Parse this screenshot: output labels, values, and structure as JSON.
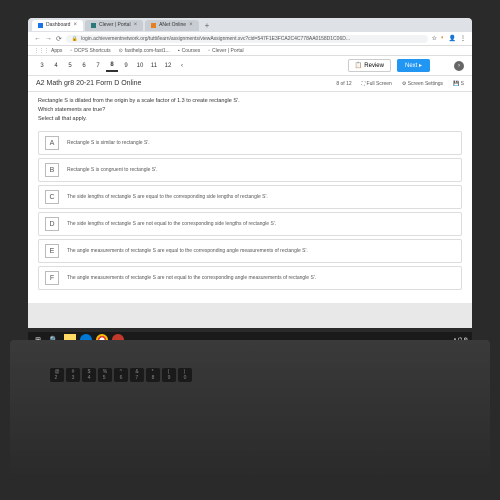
{
  "browser": {
    "tabs": [
      {
        "icon": "blue",
        "label": "Dashboard"
      },
      {
        "icon": "teal",
        "label": "Clever | Portal"
      },
      {
        "icon": "orange",
        "label": "ANet Online"
      }
    ],
    "url": "login.achievementnetwork.org/tutti/learn/assignments/viewAssignment.svc?cid=547F1E3FCA2C4C778AA0158D1C06D...",
    "bookmarks": [
      "Apps",
      "DCPS Shortcuts",
      "fasthelp.com-fast1...",
      "Courses",
      "Clever | Portal"
    ]
  },
  "quiz": {
    "numbers": [
      "3",
      "4",
      "5",
      "6",
      "7",
      "8",
      "9",
      "10",
      "11",
      "12"
    ],
    "current": "8",
    "review": "Review",
    "next": "Next ▸",
    "title": "A2 Math gr8 20-21 Form D Online",
    "progress": "8 of 12",
    "fullscreen": "Full Screen",
    "settings": "Screen Settings",
    "save": "S"
  },
  "question": {
    "line1": "Rectangle S is dilated from the origin by a scale factor of 1.3 to create rectangle S'.",
    "line2": "Which statements are true?",
    "line3": "Select all that apply.",
    "choices": [
      {
        "l": "A",
        "t": "Rectangle S is similar to rectangle S'."
      },
      {
        "l": "B",
        "t": "Rectangle S is congruent to rectangle S'."
      },
      {
        "l": "C",
        "t": "The side lengths of rectangle S are equal to the corresponding side lengths of rectangle S'."
      },
      {
        "l": "D",
        "t": "The side lengths of rectangle S are not equal to the corresponding side lengths of rectangle S'."
      },
      {
        "l": "E",
        "t": "The angle measurements of rectangle S are equal to the corresponding angle measurements of rectangle S'."
      },
      {
        "l": "F",
        "t": "The angle measurements of rectangle S are not equal to the corresponding angle measurements of rectangle S'."
      }
    ]
  },
  "taskbar": {
    "time": "",
    "sys": "∧  ⏻  ⚙"
  },
  "keys": {
    "r1": [
      "@",
      "#",
      "$",
      "%",
      "^",
      "&",
      "*",
      "(",
      ")"
    ],
    "r1b": [
      "2",
      "3",
      "4",
      "5",
      "6",
      "7",
      "8",
      "9",
      "0"
    ]
  }
}
